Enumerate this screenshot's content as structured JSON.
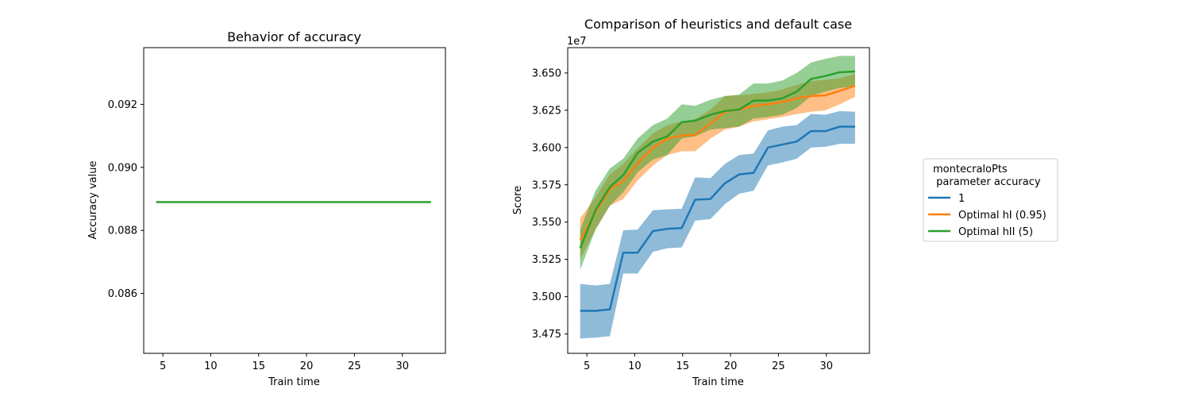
{
  "chart_data": [
    {
      "type": "line",
      "title": "Behavior of accuracy",
      "xlabel": "Train time",
      "ylabel": "Accuracy value",
      "xlim": [
        3.0,
        34.5
      ],
      "ylim": [
        0.0841,
        0.0938
      ],
      "x_ticks": [
        5,
        10,
        15,
        20,
        25,
        30
      ],
      "y_ticks": [
        0.086,
        0.088,
        0.09,
        0.092
      ],
      "y_tick_labels": [
        "0.086",
        "0.088",
        "0.090",
        "0.092"
      ],
      "color": "#2ca02c",
      "series": [
        {
          "x": [
            4.3,
            33.0
          ],
          "values": [
            0.0889,
            0.0889
          ]
        }
      ]
    },
    {
      "type": "line",
      "title": "Comparison of heuristics and default case",
      "xlabel": "Train time",
      "ylabel": "Score",
      "offset_label": "1e7",
      "xlim": [
        3.0,
        34.5
      ],
      "ylim": [
        3.462,
        3.667
      ],
      "x_ticks": [
        5,
        10,
        15,
        20,
        25,
        30
      ],
      "y_ticks": [
        3.475,
        3.5,
        3.525,
        3.55,
        3.575,
        3.6,
        3.625,
        3.65
      ],
      "y_tick_labels": [
        "3.475",
        "3.500",
        "3.525",
        "3.550",
        "3.575",
        "3.600",
        "3.625",
        "3.650"
      ],
      "legend": {
        "title_line1": "montecraloPts",
        "title_line2": " parameter accuracy",
        "placement": "center-right outside"
      },
      "x": [
        4.3,
        5.9,
        7.4,
        8.8,
        10.3,
        11.9,
        13.4,
        14.9,
        16.3,
        17.9,
        19.4,
        20.9,
        22.4,
        23.9,
        25.4,
        26.9,
        28.4,
        29.9,
        31.4,
        33.0
      ],
      "series": [
        {
          "name": "1",
          "color": "#1f77b4",
          "values": [
            3.4905,
            3.4905,
            3.4915,
            3.5295,
            3.5295,
            3.544,
            3.5455,
            3.546,
            3.565,
            3.5655,
            3.576,
            3.582,
            3.583,
            3.6,
            3.602,
            3.604,
            3.611,
            3.611,
            3.614,
            3.614
          ],
          "lower": [
            3.472,
            3.4725,
            3.4735,
            3.5155,
            3.5155,
            3.53,
            3.5325,
            3.533,
            3.551,
            3.552,
            3.562,
            3.569,
            3.571,
            3.588,
            3.59,
            3.5925,
            3.6,
            3.6005,
            3.6025,
            3.6025
          ],
          "upper": [
            3.5085,
            3.5075,
            3.5085,
            3.5445,
            3.545,
            3.558,
            3.5585,
            3.559,
            3.58,
            3.5795,
            3.589,
            3.595,
            3.596,
            3.6115,
            3.614,
            3.615,
            3.6225,
            3.622,
            3.6245,
            3.624
          ]
        },
        {
          "name": "Optimal hI (0.95)",
          "color": "#ff7f0e",
          "values": [
            3.538,
            3.5565,
            3.572,
            3.5775,
            3.5895,
            3.6,
            3.606,
            3.608,
            3.6085,
            3.616,
            3.624,
            3.6255,
            3.628,
            3.629,
            3.6305,
            3.633,
            3.6345,
            3.635,
            3.638,
            3.6415
          ],
          "lower": [
            3.525,
            3.545,
            3.561,
            3.5655,
            3.578,
            3.588,
            3.595,
            3.5975,
            3.5975,
            3.606,
            3.612,
            3.614,
            3.6175,
            3.619,
            3.6205,
            3.6225,
            3.624,
            3.625,
            3.629,
            3.634
          ],
          "upper": [
            3.5525,
            3.5665,
            3.582,
            3.589,
            3.5995,
            3.6095,
            3.615,
            3.6175,
            3.619,
            3.6255,
            3.6345,
            3.635,
            3.636,
            3.637,
            3.639,
            3.642,
            3.6445,
            3.6455,
            3.6465,
            3.6495
          ]
        },
        {
          "name": "Optimal hII (5)",
          "color": "#2ca02c",
          "values": [
            3.5325,
            3.558,
            3.5735,
            3.5815,
            3.5965,
            3.604,
            3.6075,
            3.617,
            3.618,
            3.622,
            3.6245,
            3.6255,
            3.6315,
            3.6315,
            3.633,
            3.6375,
            3.646,
            3.648,
            3.6505,
            3.651
          ],
          "lower": [
            3.518,
            3.545,
            3.561,
            3.57,
            3.5835,
            3.592,
            3.595,
            3.606,
            3.6075,
            3.612,
            3.613,
            3.614,
            3.6195,
            3.6205,
            3.622,
            3.6265,
            3.6345,
            3.6375,
            3.64,
            3.641
          ],
          "upper": [
            3.545,
            3.571,
            3.586,
            3.5925,
            3.606,
            3.615,
            3.6195,
            3.629,
            3.628,
            3.632,
            3.6345,
            3.6355,
            3.643,
            3.643,
            3.645,
            3.65,
            3.657,
            3.6595,
            3.6615,
            3.6615
          ]
        }
      ]
    }
  ]
}
